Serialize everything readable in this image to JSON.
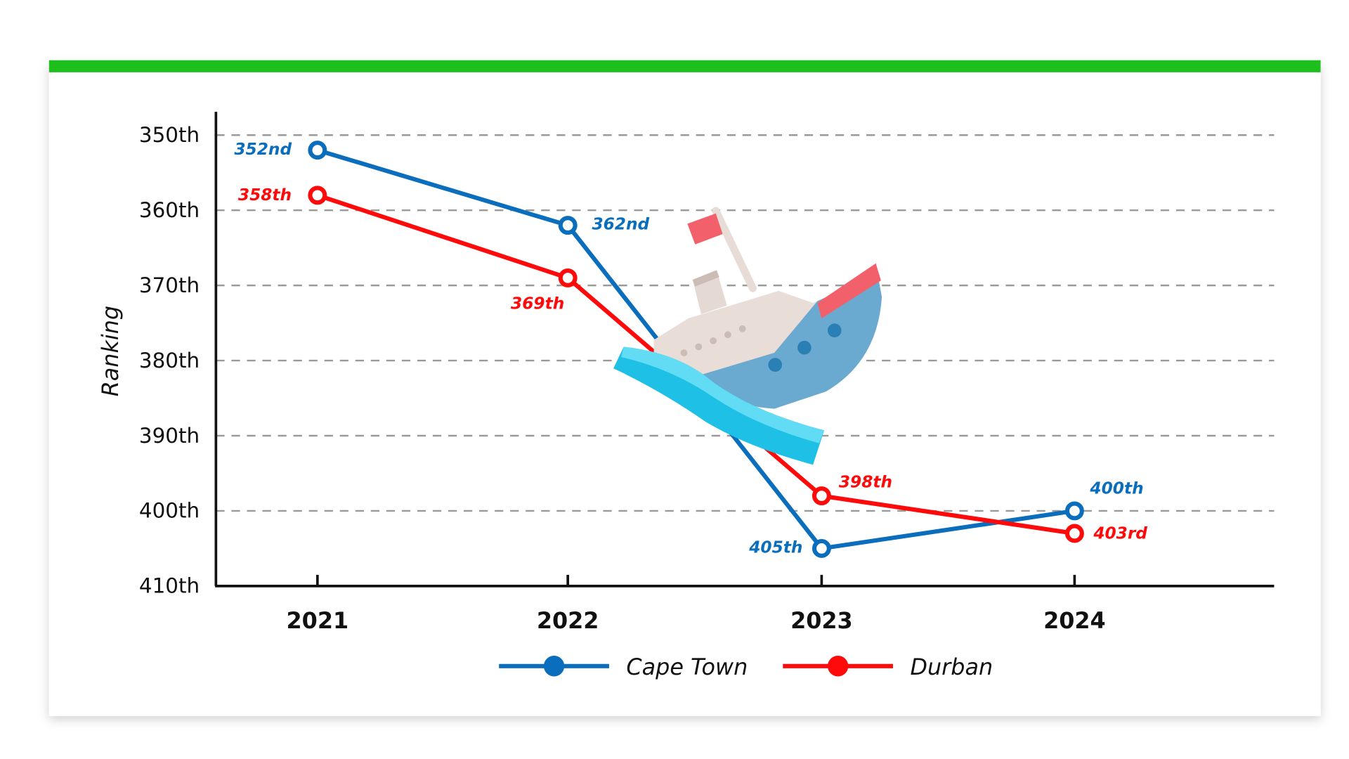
{
  "chart_data": {
    "type": "line",
    "title": "",
    "xlabel": "",
    "ylabel": "Ranking",
    "ylim": [
      350,
      410
    ],
    "y_inverted": true,
    "yticks": [
      "350th",
      "360th",
      "370th",
      "380th",
      "390th",
      "400th",
      "410th"
    ],
    "ytick_values": [
      350,
      360,
      370,
      380,
      390,
      400,
      410
    ],
    "categories": [
      "2021",
      "2022",
      "2023",
      "2024"
    ],
    "grid": true,
    "legend_placement": "bottom-center",
    "series": [
      {
        "name": "Cape Town",
        "color": "#0a6ebd",
        "values": [
          352,
          362,
          405,
          400
        ],
        "labels": [
          "352nd",
          "362nd",
          "405th",
          "400th"
        ]
      },
      {
        "name": "Durban",
        "color": "#ff0a0a",
        "values": [
          358,
          369,
          398,
          403
        ],
        "labels": [
          "358th",
          "369th",
          "398th",
          "403rd"
        ]
      }
    ]
  },
  "accent_color": "#1dbf1d"
}
